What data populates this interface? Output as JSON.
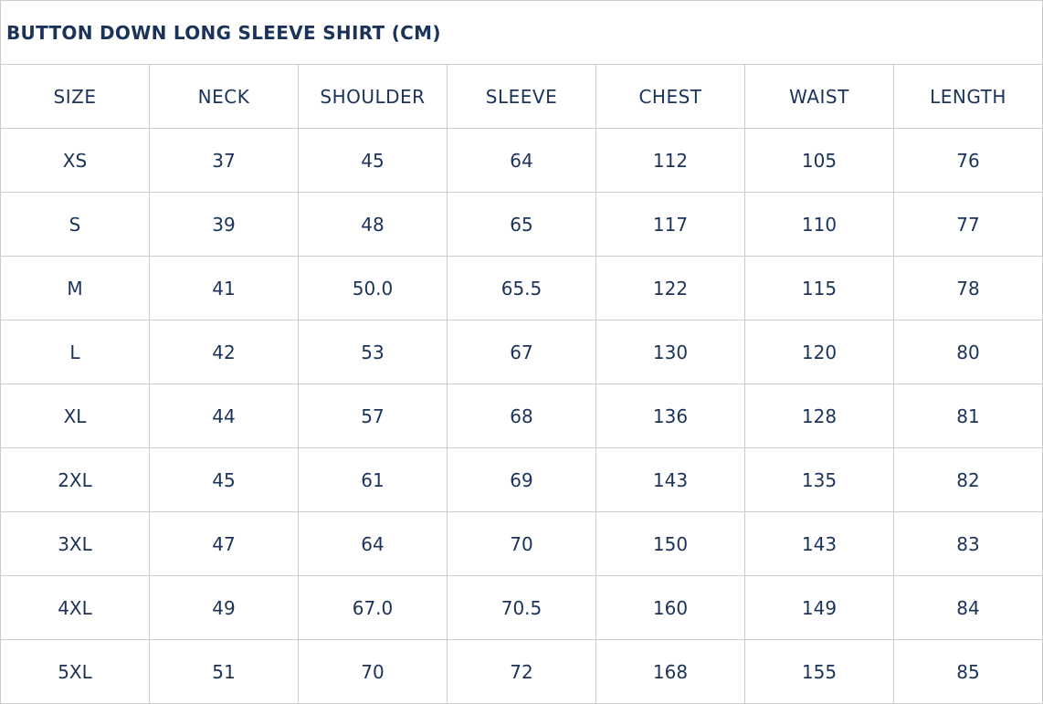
{
  "title": "BUTTON DOWN LONG SLEEVE SHIRT (CM)",
  "colors": {
    "text": "#1b3359",
    "border": "#cccccc"
  },
  "headers": [
    "SIZE",
    "NECK",
    "SHOULDER",
    "SLEEVE",
    "CHEST",
    "WAIST",
    "LENGTH"
  ],
  "rows": [
    [
      "XS",
      "37",
      "45",
      "64",
      "112",
      "105",
      "76"
    ],
    [
      "S",
      "39",
      "48",
      "65",
      "117",
      "110",
      "77"
    ],
    [
      "M",
      "41",
      "50.0",
      "65.5",
      "122",
      "115",
      "78"
    ],
    [
      "L",
      "42",
      "53",
      "67",
      "130",
      "120",
      "80"
    ],
    [
      "XL",
      "44",
      "57",
      "68",
      "136",
      "128",
      "81"
    ],
    [
      "2XL",
      "45",
      "61",
      "69",
      "143",
      "135",
      "82"
    ],
    [
      "3XL",
      "47",
      "64",
      "70",
      "150",
      "143",
      "83"
    ],
    [
      "4XL",
      "49",
      "67.0",
      "70.5",
      "160",
      "149",
      "84"
    ],
    [
      "5XL",
      "51",
      "70",
      "72",
      "168",
      "155",
      "85"
    ]
  ]
}
